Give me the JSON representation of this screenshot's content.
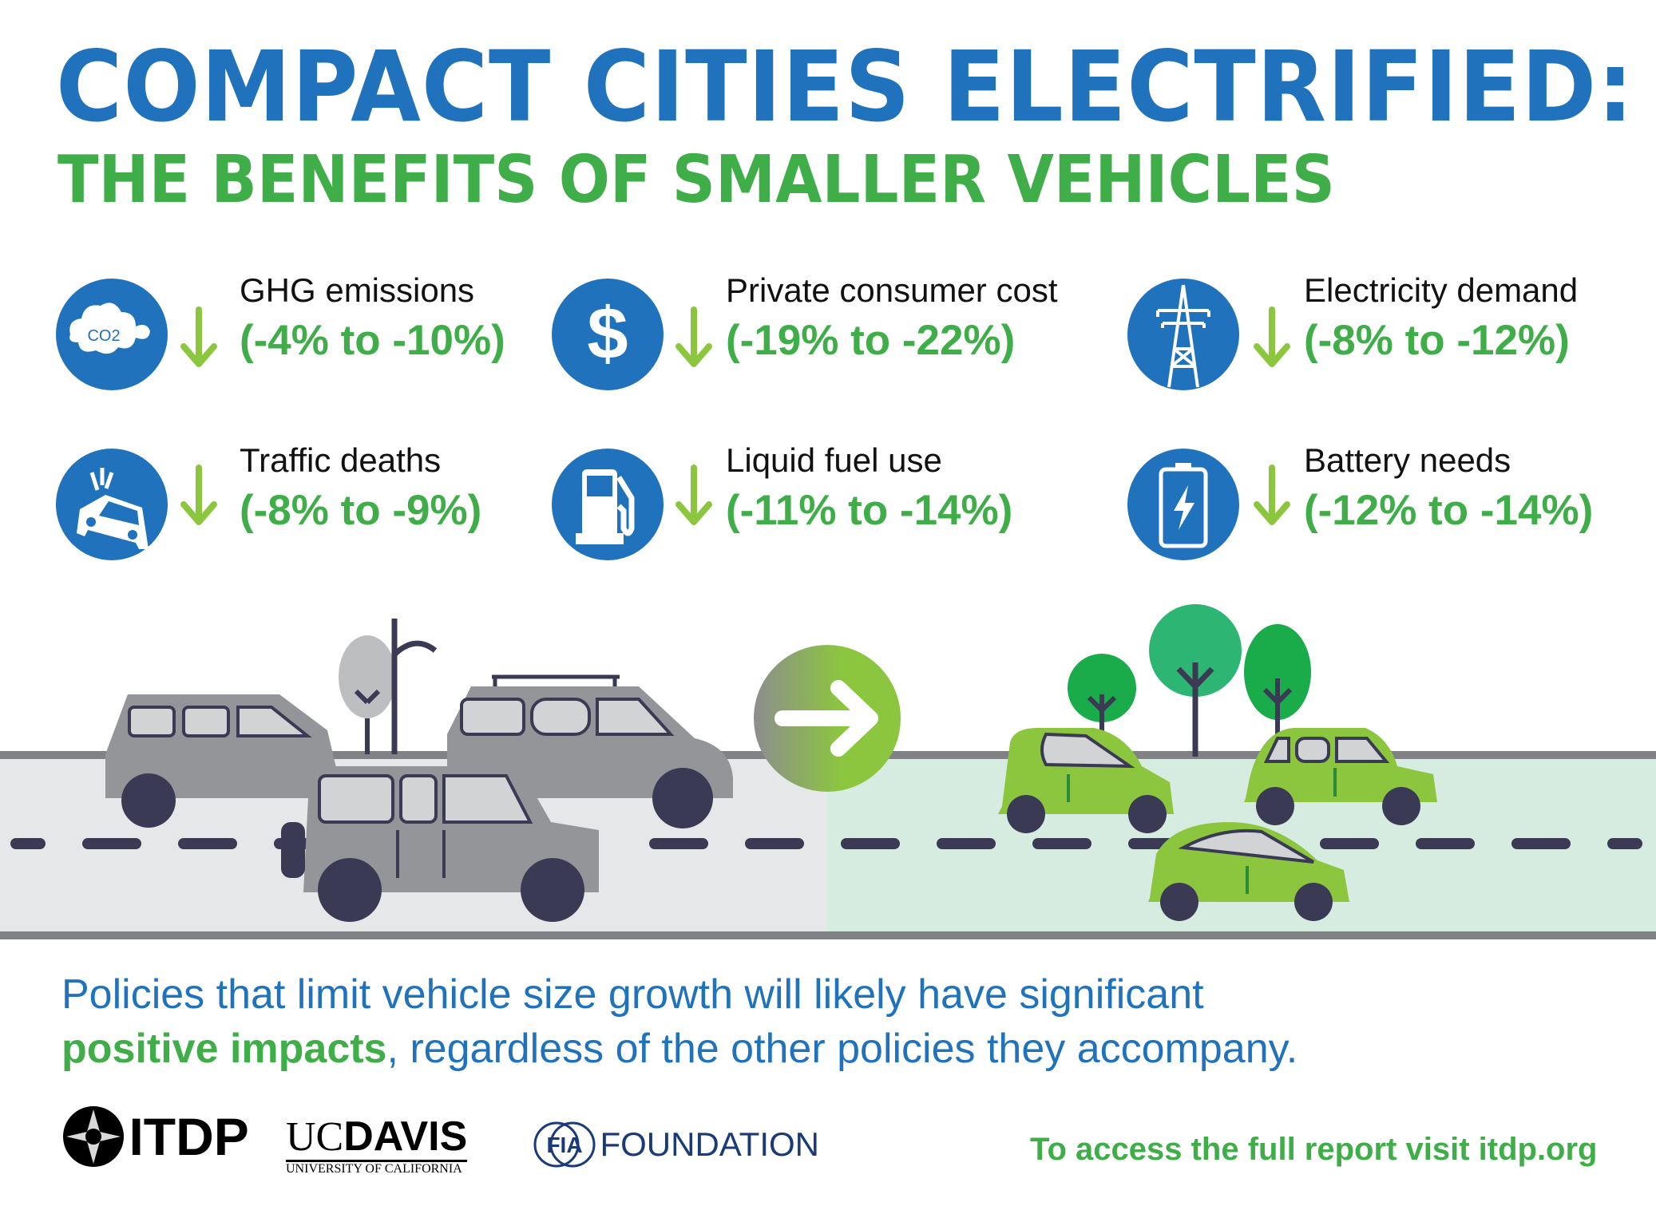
{
  "header": {
    "title": "COMPACT CITIES ELECTRIFIED:",
    "subtitle": "THE BENEFITS OF SMALLER VEHICLES"
  },
  "benefits": [
    {
      "label": "GHG emissions",
      "value": "(-4% to -10%)",
      "icon": "co2-cloud-icon",
      "icon_text": "CO2"
    },
    {
      "label": "Private consumer cost",
      "value": "(-19% to -22%)",
      "icon": "dollar-icon",
      "icon_text": "$"
    },
    {
      "label": "Electricity demand",
      "value": "(-8% to -12%)",
      "icon": "power-tower-icon"
    },
    {
      "label": "Traffic deaths",
      "value": "(-8% to -9%)",
      "icon": "car-crash-icon"
    },
    {
      "label": "Liquid fuel use",
      "value": "(-11% to -14%)",
      "icon": "fuel-pump-icon"
    },
    {
      "label": "Battery needs",
      "value": "(-12% to -14%)",
      "icon": "battery-icon"
    }
  ],
  "footer": {
    "line1": "Policies that limit vehicle size growth will likely have significant",
    "line2_highlight": "positive impacts",
    "line2_rest": ", regardless of the other policies they accompany.",
    "link_text": "To access the full report visit itdp.org"
  },
  "logos": {
    "itdp": "ITDP",
    "ucdavis_uc": "UC",
    "ucdavis_davis": "DAVIS",
    "ucdavis_sub": "UNIVERSITY OF CALIFORNIA",
    "fia": "FIA",
    "fia_foundation": "FOUNDATION"
  },
  "colors": {
    "blue": "#1f72bb",
    "green": "#3fae49",
    "lime": "#8cc63f",
    "grey_car": "#939598",
    "wheel": "#3b3a55"
  }
}
